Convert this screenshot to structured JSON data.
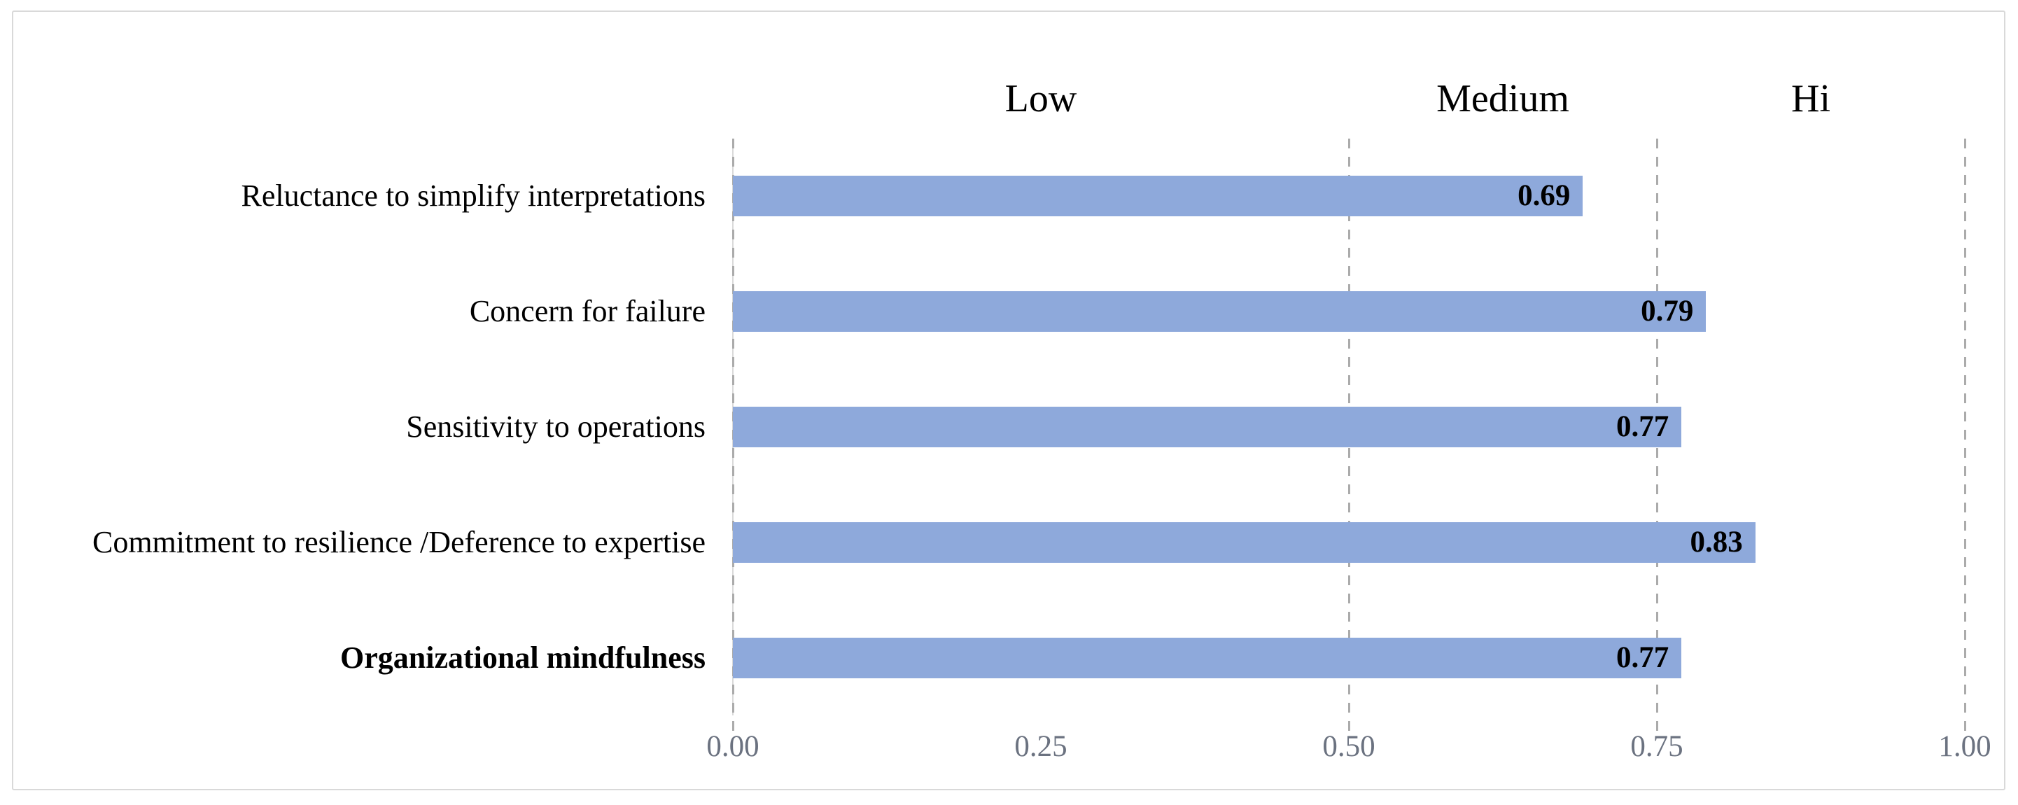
{
  "chart_data": {
    "type": "bar",
    "orientation": "horizontal",
    "title": "",
    "xlabel": "",
    "ylabel": "",
    "xlim": [
      0,
      1
    ],
    "grid": "dashed-vertical",
    "legend": "none",
    "bars": [
      {
        "label": "Reluctance to simplify interpretations",
        "value": 0.69,
        "value_label": "0.69",
        "bold": false
      },
      {
        "label": "Concern for failure",
        "value": 0.79,
        "value_label": "0.79",
        "bold": false
      },
      {
        "label": "Sensitivity to operations",
        "value": 0.77,
        "value_label": "0.77",
        "bold": false
      },
      {
        "label": "Commitment to resilience /Deference to expertise",
        "value": 0.83,
        "value_label": "0.83",
        "bold": false
      },
      {
        "label": "Organizational mindfulness",
        "value": 0.77,
        "value_label": "0.77",
        "bold": true
      }
    ],
    "x_ticks": [
      {
        "value": 0.0,
        "label": "0.00"
      },
      {
        "value": 0.25,
        "label": "0.25"
      },
      {
        "value": 0.5,
        "label": "0.50"
      },
      {
        "value": 0.75,
        "label": "0.75"
      },
      {
        "value": 1.0,
        "label": "1.00"
      }
    ],
    "gridline_values": [
      0.0,
      0.5,
      0.75,
      1.0
    ],
    "region_labels": [
      {
        "label": "Low",
        "from": 0.0,
        "to": 0.5
      },
      {
        "label": "Medium",
        "from": 0.5,
        "to": 0.75
      },
      {
        "label": "Hi",
        "from": 0.75,
        "to": 1.0
      }
    ],
    "colors": {
      "bar": "#8EA9DB",
      "gridline": "#ABABAB",
      "axis_line": "#D9D9D9",
      "figure_border": "#D9D9D9",
      "tick_label": "#6B7280",
      "text": "#000000"
    }
  }
}
